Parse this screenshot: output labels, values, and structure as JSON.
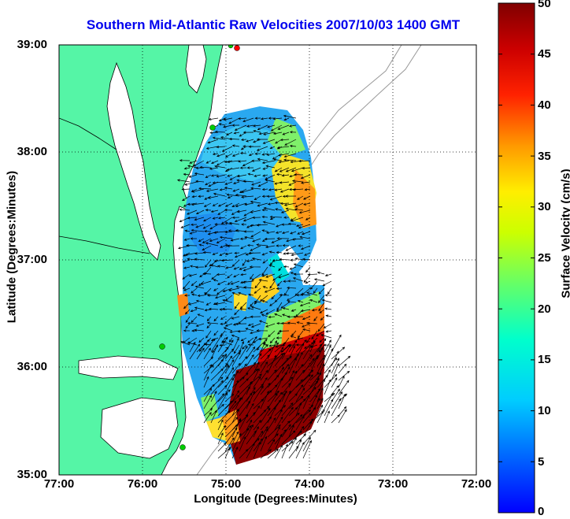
{
  "title": "Southern Mid-Atlantic Raw Velocities 2007/10/03 1400 GMT",
  "x_axis": {
    "label": "Longitude (Degrees:Minutes)",
    "ticks": [
      "77:00",
      "76:00",
      "75:00",
      "74:00",
      "73:00",
      "72:00"
    ]
  },
  "y_axis": {
    "label": "Latitude (Degrees:Minutes)",
    "ticks": [
      "39:00",
      "38:00",
      "37:00",
      "36:00",
      "35:00"
    ]
  },
  "colorbar": {
    "label": "Surface Velocity (cm/s)",
    "ticks": [
      "50",
      "45",
      "40",
      "35",
      "30",
      "25",
      "20",
      "15",
      "10",
      "5",
      "0"
    ],
    "min": 0,
    "max": 50,
    "colormap": "jet"
  },
  "colors": {
    "land": "#55f5a6",
    "title": "#0000ee",
    "station_green": "#00cc00",
    "station_red": "#ff0000"
  },
  "map_extent": {
    "lon_west": -77.0,
    "lon_east": -72.0,
    "lat_south": 35.0,
    "lat_north": 39.0
  },
  "grid": "dotted"
}
